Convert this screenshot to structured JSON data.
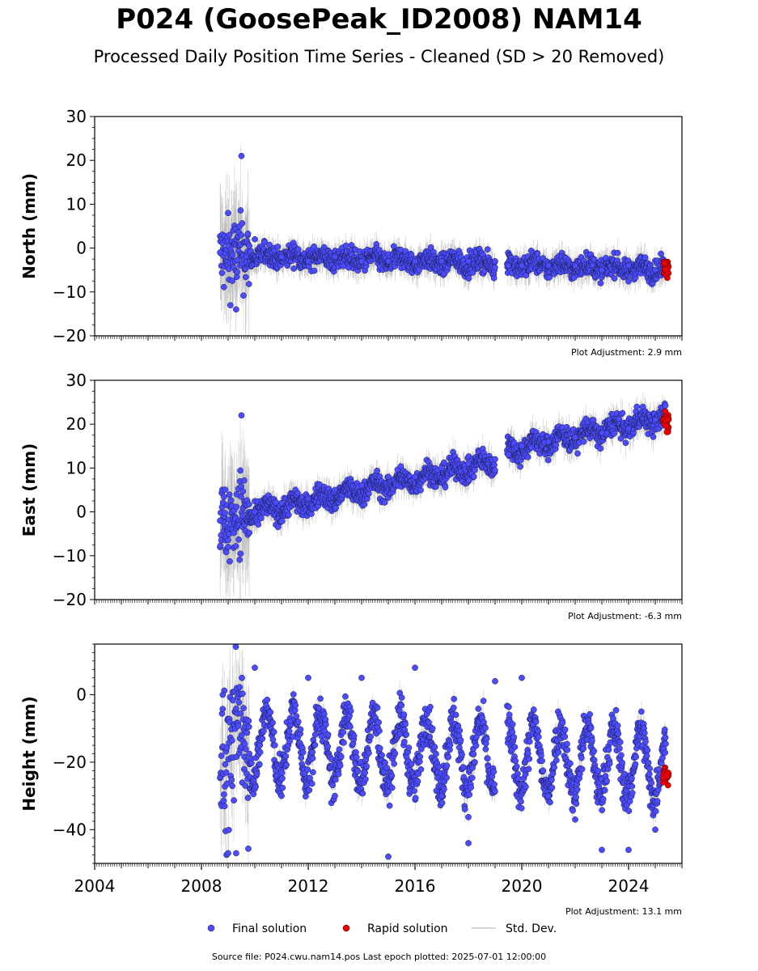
{
  "title": "P024 (GoosePeak_ID2008) NAM14",
  "subtitle": "Processed Daily Position Time Series - Cleaned (SD > 20 Removed)",
  "source": "Source file: P024.cwu.nam14.pos  Last epoch plotted: 2025-07-01 12:00:00",
  "colors": {
    "final": "#4b4bff",
    "rapid": "#ee0000",
    "stddev": "#808080",
    "edge": "#1a1a40"
  },
  "legend": [
    {
      "label": "Final solution",
      "type": "final"
    },
    {
      "label": "Rapid solution",
      "type": "rapid"
    },
    {
      "label": "Std. Dev.",
      "type": "stddev"
    }
  ],
  "chart_data": [
    {
      "type": "scatter",
      "ylabel": "North (mm)",
      "adjustment": "Plot Adjustment: 2.9 mm",
      "xlim": [
        2004,
        2026
      ],
      "ylim": [
        -20,
        30
      ],
      "yticks": [
        -20,
        -10,
        0,
        10,
        20,
        30
      ],
      "xticks": [],
      "grid": false,
      "model": {
        "start": 2008.7,
        "end": 2025.4,
        "offset": -1.5,
        "trend": -0.2,
        "annual": 0.8,
        "noise": 1.2,
        "rapid_level": -4
      },
      "series": [
        {
          "name": "Final solution",
          "x": [
            2008.7,
            2009.0,
            2009.3,
            2009.5,
            2010.0,
            2011.0,
            2012.0,
            2013.0,
            2014.0,
            2015.0,
            2016.0,
            2017.0,
            2018.0,
            2019.0,
            2019.5,
            2020.0,
            2021.0,
            2022.0,
            2023.0,
            2024.0,
            2025.0
          ],
          "y": [
            -1,
            8,
            -14,
            21,
            2,
            -2,
            -3,
            -2,
            -3,
            -3,
            -3,
            -3,
            -3,
            -3,
            -4,
            -4,
            -4,
            -4,
            -5,
            -4,
            -5
          ]
        },
        {
          "name": "Rapid solution",
          "x": [
            2025.3,
            2025.4,
            2025.5
          ],
          "y": [
            -4,
            -2,
            -6
          ]
        }
      ]
    },
    {
      "type": "scatter",
      "ylabel": "East (mm)",
      "adjustment": "Plot Adjustment: -6.3 mm",
      "xlim": [
        2004,
        2026
      ],
      "ylim": [
        -20,
        30
      ],
      "yticks": [
        -20,
        -10,
        0,
        10,
        20,
        30
      ],
      "xticks": [],
      "grid": false,
      "model": {
        "start": 2008.7,
        "end": 2025.4,
        "offset": -2,
        "trend": 1.3,
        "annual": 1.2,
        "noise": 1.3,
        "offset_event": 2019.4,
        "offset_jump": 2,
        "rapid_level": 21
      },
      "series": [
        {
          "name": "Final solution",
          "x": [
            2008.7,
            2009.0,
            2009.5,
            2010.0,
            2011.0,
            2012.0,
            2013.0,
            2014.0,
            2015.0,
            2016.0,
            2017.0,
            2018.0,
            2019.0,
            2019.5,
            2020.0,
            2021.0,
            2022.0,
            2023.0,
            2024.0,
            2025.0
          ],
          "y": [
            -2,
            -8,
            22,
            0,
            2,
            3,
            5,
            6,
            8,
            8,
            10,
            11,
            12,
            13,
            15,
            16,
            17,
            18,
            19,
            21
          ]
        },
        {
          "name": "Rapid solution",
          "x": [
            2025.3,
            2025.4,
            2025.5
          ],
          "y": [
            20,
            22,
            19
          ]
        }
      ]
    },
    {
      "type": "scatter",
      "ylabel": "Height (mm)",
      "adjustment": "Plot Adjustment: 13.1 mm",
      "xlim": [
        2004,
        2026
      ],
      "ylim": [
        -50,
        15
      ],
      "yticks": [
        -40,
        -20,
        0
      ],
      "xticks": [
        2004,
        2008,
        2012,
        2016,
        2020,
        2024
      ],
      "grid": false,
      "model": {
        "start": 2008.7,
        "end": 2025.4,
        "offset": -14,
        "trend": -0.4,
        "annual": 10,
        "noise": 3.2,
        "rapid_level": -24
      },
      "series": [
        {
          "name": "Final solution",
          "x": [
            2008.8,
            2009.3,
            2010.0,
            2011.0,
            2012.0,
            2013.0,
            2014.0,
            2015.0,
            2016.0,
            2017.0,
            2018.0,
            2019.0,
            2020.0,
            2021.0,
            2022.0,
            2023.0,
            2024.0,
            2025.0
          ],
          "y": [
            0,
            -47,
            8,
            -30,
            5,
            -30,
            5,
            -48,
            8,
            -30,
            -44,
            4,
            5,
            -30,
            -37,
            -46,
            -46,
            -40
          ]
        },
        {
          "name": "Rapid solution",
          "x": [
            2025.3,
            2025.4,
            2025.5
          ],
          "y": [
            -20,
            -24,
            -28
          ]
        }
      ]
    }
  ]
}
